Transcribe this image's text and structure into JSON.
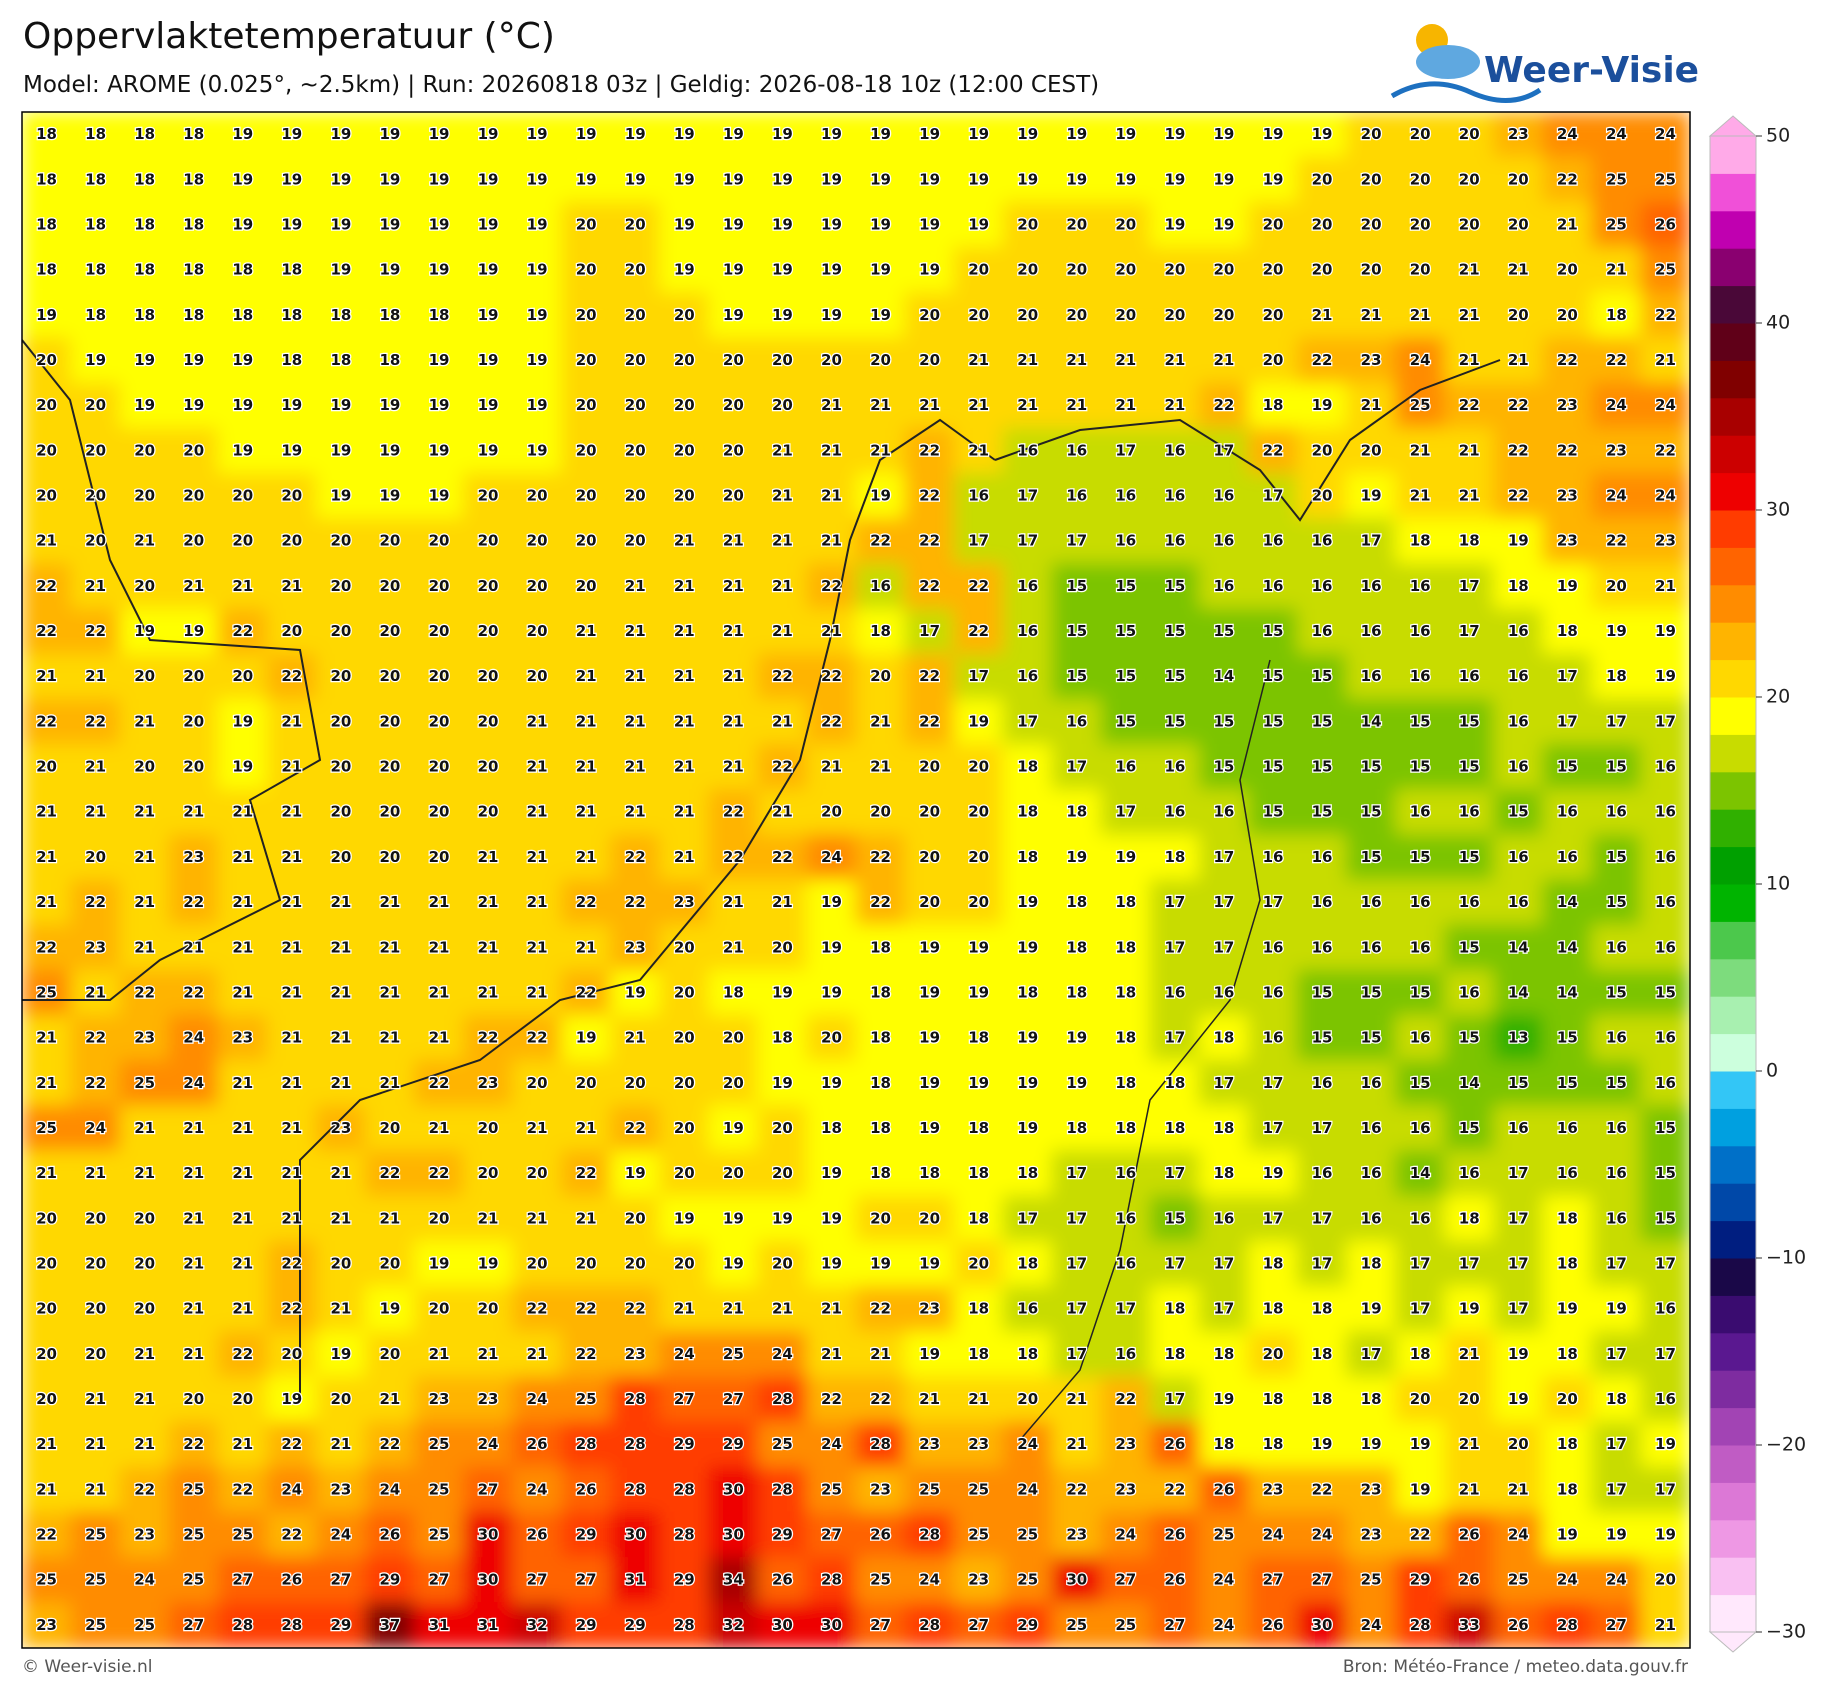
{
  "header": {
    "title": "Oppervlaktetemperatuur (°C)",
    "subtitle": "Model: AROME (0.025°, ~2.5km)  |  Run: 20260818 03z  |  Geldig: 2026-08-18 10z (12:00 CEST)",
    "logo": "Weer-Visie"
  },
  "map": {
    "type": "grid",
    "values": [
      [
        18,
        18,
        18,
        18,
        19,
        19,
        19,
        19,
        19,
        19,
        19,
        19,
        19,
        19,
        19,
        19,
        19,
        19,
        19,
        19,
        19,
        19,
        19,
        19,
        19,
        19,
        19,
        20,
        20,
        20,
        23,
        24,
        24,
        24
      ],
      [
        18,
        18,
        18,
        18,
        19,
        19,
        19,
        19,
        19,
        19,
        19,
        19,
        19,
        19,
        19,
        19,
        19,
        19,
        19,
        19,
        19,
        19,
        19,
        19,
        19,
        19,
        20,
        20,
        20,
        20,
        20,
        22,
        25,
        25
      ],
      [
        18,
        18,
        18,
        18,
        19,
        19,
        19,
        19,
        19,
        19,
        19,
        20,
        20,
        19,
        19,
        19,
        19,
        19,
        19,
        19,
        20,
        20,
        20,
        19,
        19,
        20,
        20,
        20,
        20,
        20,
        20,
        21,
        25,
        26
      ],
      [
        18,
        18,
        18,
        18,
        18,
        18,
        19,
        19,
        19,
        19,
        19,
        20,
        20,
        19,
        19,
        19,
        19,
        19,
        19,
        20,
        20,
        20,
        20,
        20,
        20,
        20,
        20,
        20,
        20,
        21,
        21,
        20,
        21,
        25
      ],
      [
        19,
        18,
        18,
        18,
        18,
        18,
        18,
        18,
        18,
        19,
        19,
        20,
        20,
        20,
        19,
        19,
        19,
        19,
        20,
        20,
        20,
        20,
        20,
        20,
        20,
        20,
        21,
        21,
        21,
        21,
        20,
        20,
        18,
        22
      ],
      [
        20,
        19,
        19,
        19,
        19,
        18,
        18,
        18,
        19,
        19,
        19,
        20,
        20,
        20,
        20,
        20,
        20,
        20,
        20,
        21,
        21,
        21,
        21,
        21,
        21,
        20,
        22,
        23,
        24,
        21,
        21,
        22,
        22,
        21
      ],
      [
        20,
        20,
        19,
        19,
        19,
        19,
        19,
        19,
        19,
        19,
        19,
        20,
        20,
        20,
        20,
        20,
        21,
        21,
        21,
        21,
        21,
        21,
        21,
        21,
        22,
        18,
        19,
        21,
        25,
        22,
        22,
        23,
        24,
        24
      ],
      [
        20,
        20,
        20,
        20,
        19,
        19,
        19,
        19,
        19,
        19,
        19,
        20,
        20,
        20,
        20,
        21,
        21,
        21,
        22,
        21,
        16,
        16,
        17,
        16,
        17,
        22,
        20,
        20,
        21,
        21,
        22,
        22,
        23,
        22
      ],
      [
        20,
        20,
        20,
        20,
        20,
        20,
        19,
        19,
        19,
        20,
        20,
        20,
        20,
        20,
        20,
        21,
        21,
        19,
        22,
        16,
        17,
        16,
        16,
        16,
        16,
        17,
        20,
        19,
        21,
        21,
        22,
        23,
        24,
        24
      ],
      [
        21,
        20,
        21,
        20,
        20,
        20,
        20,
        20,
        20,
        20,
        20,
        20,
        20,
        21,
        21,
        21,
        21,
        22,
        22,
        17,
        17,
        17,
        16,
        16,
        16,
        16,
        16,
        17,
        18,
        18,
        19,
        23,
        22,
        23
      ],
      [
        22,
        21,
        20,
        21,
        21,
        21,
        20,
        20,
        20,
        20,
        20,
        20,
        21,
        21,
        21,
        21,
        22,
        16,
        22,
        22,
        16,
        15,
        15,
        15,
        16,
        16,
        16,
        16,
        16,
        17,
        18,
        19,
        20,
        21
      ],
      [
        22,
        22,
        19,
        19,
        22,
        20,
        20,
        20,
        20,
        20,
        20,
        21,
        21,
        21,
        21,
        21,
        21,
        18,
        17,
        22,
        16,
        15,
        15,
        15,
        15,
        15,
        16,
        16,
        16,
        17,
        16,
        18,
        19,
        19
      ],
      [
        21,
        21,
        20,
        20,
        20,
        22,
        20,
        20,
        20,
        20,
        20,
        21,
        21,
        21,
        21,
        22,
        22,
        20,
        22,
        17,
        16,
        15,
        15,
        15,
        14,
        15,
        15,
        16,
        16,
        16,
        16,
        17,
        18,
        19
      ],
      [
        22,
        22,
        21,
        20,
        19,
        21,
        20,
        20,
        20,
        20,
        21,
        21,
        21,
        21,
        21,
        21,
        22,
        21,
        22,
        19,
        17,
        16,
        15,
        15,
        15,
        15,
        15,
        14,
        15,
        15,
        16,
        17,
        17,
        17
      ],
      [
        20,
        21,
        20,
        20,
        19,
        21,
        20,
        20,
        20,
        20,
        21,
        21,
        21,
        21,
        21,
        22,
        21,
        21,
        20,
        20,
        18,
        17,
        16,
        16,
        15,
        15,
        15,
        15,
        15,
        15,
        16,
        15,
        15,
        16
      ],
      [
        21,
        21,
        21,
        21,
        21,
        21,
        20,
        20,
        20,
        20,
        21,
        21,
        21,
        21,
        22,
        21,
        20,
        20,
        20,
        20,
        18,
        18,
        17,
        16,
        16,
        15,
        15,
        15,
        16,
        16,
        15,
        16,
        16,
        16
      ],
      [
        21,
        20,
        21,
        23,
        21,
        21,
        20,
        20,
        20,
        21,
        21,
        21,
        22,
        21,
        22,
        22,
        24,
        22,
        20,
        20,
        18,
        19,
        19,
        18,
        17,
        16,
        16,
        15,
        15,
        15,
        16,
        16,
        15,
        16
      ],
      [
        21,
        22,
        21,
        22,
        21,
        21,
        21,
        21,
        21,
        21,
        21,
        22,
        22,
        23,
        21,
        21,
        19,
        22,
        20,
        20,
        19,
        18,
        18,
        17,
        17,
        17,
        16,
        16,
        16,
        16,
        16,
        14,
        15,
        16
      ],
      [
        22,
        23,
        21,
        21,
        21,
        21,
        21,
        21,
        21,
        21,
        21,
        21,
        23,
        20,
        21,
        20,
        19,
        18,
        19,
        19,
        19,
        18,
        18,
        17,
        17,
        16,
        16,
        16,
        16,
        15,
        14,
        14,
        16,
        16
      ],
      [
        25,
        21,
        22,
        22,
        21,
        21,
        21,
        21,
        21,
        21,
        21,
        22,
        19,
        20,
        18,
        19,
        19,
        18,
        19,
        19,
        18,
        18,
        18,
        16,
        16,
        16,
        15,
        15,
        15,
        16,
        14,
        14,
        15,
        15
      ],
      [
        21,
        22,
        23,
        24,
        23,
        21,
        21,
        21,
        21,
        22,
        22,
        19,
        21,
        20,
        20,
        18,
        20,
        18,
        19,
        18,
        19,
        19,
        18,
        17,
        18,
        16,
        15,
        15,
        16,
        15,
        13,
        15,
        16,
        16
      ],
      [
        21,
        22,
        25,
        24,
        21,
        21,
        21,
        21,
        22,
        23,
        20,
        20,
        20,
        20,
        20,
        19,
        19,
        18,
        19,
        19,
        19,
        19,
        18,
        18,
        17,
        17,
        16,
        16,
        15,
        14,
        15,
        15,
        15,
        16
      ],
      [
        25,
        24,
        21,
        21,
        21,
        21,
        23,
        20,
        21,
        20,
        21,
        21,
        22,
        20,
        19,
        20,
        18,
        18,
        19,
        18,
        19,
        18,
        18,
        18,
        18,
        17,
        17,
        16,
        16,
        15,
        16,
        16,
        16,
        15
      ],
      [
        21,
        21,
        21,
        21,
        21,
        21,
        21,
        22,
        22,
        20,
        20,
        22,
        19,
        20,
        20,
        20,
        19,
        18,
        18,
        18,
        18,
        17,
        16,
        17,
        18,
        19,
        16,
        16,
        14,
        16,
        17,
        16,
        16,
        15
      ],
      [
        20,
        20,
        20,
        21,
        21,
        21,
        21,
        21,
        20,
        21,
        21,
        21,
        20,
        19,
        19,
        19,
        19,
        20,
        20,
        18,
        17,
        17,
        16,
        15,
        16,
        17,
        17,
        16,
        16,
        18,
        17,
        18,
        16,
        15
      ],
      [
        20,
        20,
        20,
        21,
        21,
        22,
        20,
        20,
        19,
        19,
        20,
        20,
        20,
        20,
        19,
        20,
        19,
        19,
        19,
        20,
        18,
        17,
        16,
        17,
        17,
        18,
        17,
        18,
        17,
        17,
        17,
        18,
        17,
        17
      ],
      [
        20,
        20,
        20,
        21,
        21,
        22,
        21,
        19,
        20,
        20,
        22,
        22,
        22,
        21,
        21,
        21,
        21,
        22,
        23,
        18,
        16,
        17,
        17,
        18,
        17,
        18,
        18,
        19,
        17,
        19,
        17,
        19,
        19,
        16
      ],
      [
        20,
        20,
        21,
        21,
        22,
        20,
        19,
        20,
        21,
        21,
        21,
        22,
        23,
        24,
        25,
        24,
        21,
        21,
        19,
        18,
        18,
        17,
        16,
        18,
        18,
        20,
        18,
        17,
        18,
        21,
        19,
        18,
        17,
        17
      ],
      [
        20,
        21,
        21,
        20,
        20,
        19,
        20,
        21,
        23,
        23,
        24,
        25,
        28,
        27,
        27,
        28,
        22,
        22,
        21,
        21,
        20,
        21,
        22,
        17,
        19,
        18,
        18,
        18,
        20,
        20,
        19,
        20,
        18,
        16
      ],
      [
        21,
        21,
        21,
        22,
        21,
        22,
        21,
        22,
        25,
        24,
        26,
        28,
        28,
        29,
        29,
        25,
        24,
        28,
        23,
        23,
        24,
        21,
        23,
        26,
        18,
        18,
        19,
        19,
        19,
        21,
        20,
        18,
        17,
        19
      ],
      [
        21,
        21,
        22,
        25,
        22,
        24,
        23,
        24,
        25,
        27,
        24,
        26,
        28,
        28,
        30,
        28,
        25,
        23,
        25,
        25,
        24,
        22,
        23,
        22,
        26,
        23,
        22,
        23,
        19,
        21,
        21,
        18,
        17,
        17
      ],
      [
        22,
        25,
        23,
        25,
        25,
        22,
        24,
        26,
        25,
        30,
        26,
        29,
        30,
        28,
        30,
        29,
        27,
        26,
        28,
        25,
        25,
        23,
        24,
        26,
        25,
        24,
        24,
        23,
        22,
        26,
        24,
        19,
        19,
        19
      ],
      [
        25,
        25,
        24,
        25,
        27,
        26,
        27,
        29,
        27,
        30,
        27,
        27,
        31,
        29,
        34,
        26,
        28,
        25,
        24,
        23,
        25,
        30,
        27,
        26,
        24,
        27,
        27,
        25,
        29,
        26,
        25,
        24,
        24,
        20
      ],
      [
        23,
        25,
        25,
        27,
        28,
        28,
        29,
        37,
        31,
        31,
        32,
        29,
        29,
        28,
        32,
        30,
        30,
        27,
        28,
        27,
        29,
        25,
        25,
        27,
        24,
        26,
        30,
        24,
        28,
        33,
        26,
        28,
        27,
        21
      ]
    ],
    "colorbar": {
      "lim": [
        -30,
        50
      ],
      "ticks": [
        50,
        40,
        30,
        20,
        10,
        0,
        {
          "value": -10,
          "label": "−10"
        },
        {
          "value": -20,
          "label": "−20"
        },
        {
          "value": -30,
          "label": "−30"
        }
      ],
      "colors": [
        "#ffe8fc",
        "#f9c0f2",
        "#ee98e4",
        "#dc78d6",
        "#c05cc4",
        "#a244b4",
        "#7e2ca0",
        "#5a1890",
        "#3a0c70",
        "#1a0848",
        "#001e80",
        "#0048a8",
        "#0070c8",
        "#00a0e0",
        "#33c6f6",
        "#ccffdd",
        "#a8f0b0",
        "#7ddc7d",
        "#4cc84c",
        "#00b400",
        "#00a000",
        "#30b000",
        "#7cc400",
        "#c8dc00",
        "#ffff00",
        "#ffd800",
        "#ffb400",
        "#ff8c00",
        "#ff6400",
        "#ff3c00",
        "#ee0000",
        "#cc0000",
        "#a80000",
        "#800000",
        "#600018",
        "#4a0838",
        "#8a0070",
        "#c000b0",
        "#f050d8",
        "#ffaae8"
      ]
    }
  },
  "footer": {
    "credit": "© Weer-visie.nl",
    "source": "Bron: Météo-France / meteo.data.gouv.fr"
  }
}
